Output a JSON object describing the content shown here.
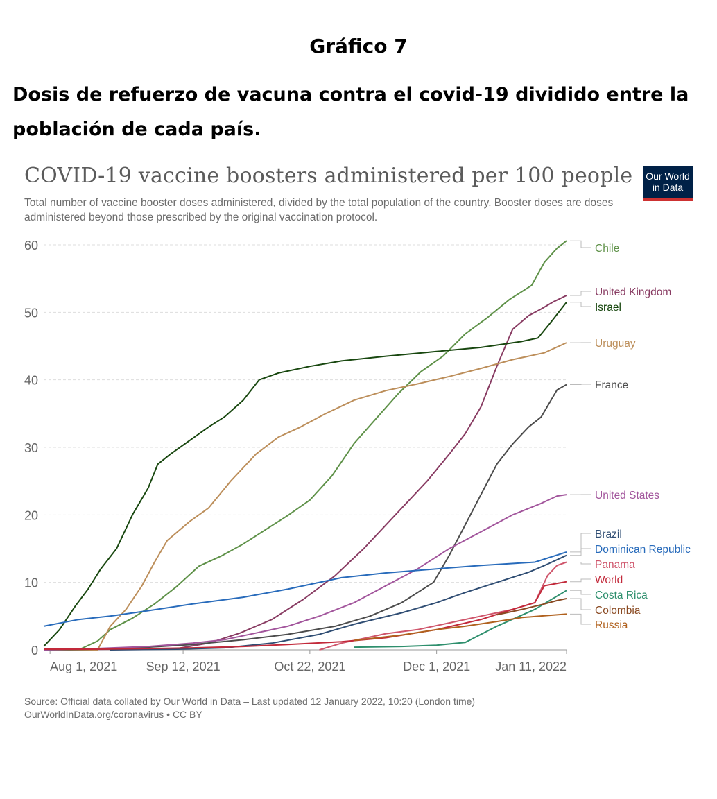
{
  "heading": "Gráfico 7",
  "doc_title": "Dosis de refuerzo de vacuna contra el covid-19 dividido entre la población de cada país.",
  "logo": "Our World in Data",
  "source_line1": "Source: Official data collated by Our World in Data – Last updated 12 January 2022, 10:20 (London time)",
  "source_line2": "OurWorldInData.org/coronavirus • CC BY",
  "chart_data": {
    "type": "line",
    "title": "COVID-19 vaccine boosters administered per 100 people",
    "subtitle": "Total number of vaccine booster doses administered, divided by the total population of the country. Booster doses are doses administered beyond those prescribed by the original vaccination protocol.",
    "x_ticks": [
      "Aug 1, 2021",
      "Sep 12, 2021",
      "Oct 22, 2021",
      "Dec 1, 2021",
      "Jan 11, 2022"
    ],
    "x_range": [
      "2021-07-30",
      "2022-01-11"
    ],
    "ylim": [
      0,
      60
    ],
    "y_ticks": [
      0,
      10,
      20,
      30,
      40,
      50,
      60
    ],
    "grid": "horizontal dashed",
    "legend": "line labels at right",
    "series": [
      {
        "name": "Chile",
        "color": "#5e9148",
        "points": [
          [
            "2021-08-10",
            0
          ],
          [
            "2021-08-16",
            1.3
          ],
          [
            "2021-08-20",
            3
          ],
          [
            "2021-08-27",
            4.7
          ],
          [
            "2021-09-03",
            6.8
          ],
          [
            "2021-09-10",
            9.4
          ],
          [
            "2021-09-17",
            12.4
          ],
          [
            "2021-09-24",
            13.9
          ],
          [
            "2021-10-01",
            15.7
          ],
          [
            "2021-10-08",
            17.8
          ],
          [
            "2021-10-15",
            19.9
          ],
          [
            "2021-10-22",
            22.2
          ],
          [
            "2021-10-29",
            25.8
          ],
          [
            "2021-11-05",
            30.6
          ],
          [
            "2021-11-12",
            34.3
          ],
          [
            "2021-11-19",
            38
          ],
          [
            "2021-11-26",
            41.2
          ],
          [
            "2021-12-03",
            43.5
          ],
          [
            "2021-12-10",
            46.8
          ],
          [
            "2021-12-17",
            49.2
          ],
          [
            "2021-12-24",
            51.9
          ],
          [
            "2021-12-31",
            54
          ],
          [
            "2022-01-04",
            57.4
          ],
          [
            "2022-01-08",
            59.5
          ],
          [
            "2022-01-11",
            60.6
          ]
        ]
      },
      {
        "name": "United Kingdom",
        "color": "#883b62",
        "points": [
          [
            "2021-07-30",
            0
          ],
          [
            "2021-09-10",
            0.2
          ],
          [
            "2021-09-20",
            1
          ],
          [
            "2021-09-30",
            2.5
          ],
          [
            "2021-10-10",
            4.5
          ],
          [
            "2021-10-20",
            7.5
          ],
          [
            "2021-10-30",
            11
          ],
          [
            "2021-11-08",
            15
          ],
          [
            "2021-11-18",
            20
          ],
          [
            "2021-11-28",
            25
          ],
          [
            "2021-12-05",
            29
          ],
          [
            "2021-12-10",
            32
          ],
          [
            "2021-12-15",
            36
          ],
          [
            "2021-12-20",
            42
          ],
          [
            "2021-12-25",
            47.5
          ],
          [
            "2021-12-30",
            49.5
          ],
          [
            "2022-01-03",
            50.5
          ],
          [
            "2022-01-07",
            51.6
          ],
          [
            "2022-01-11",
            52.5
          ]
        ]
      },
      {
        "name": "Israel",
        "color": "#18470f",
        "points": [
          [
            "2021-07-30",
            0.5
          ],
          [
            "2021-08-04",
            3
          ],
          [
            "2021-08-09",
            6.5
          ],
          [
            "2021-08-13",
            9
          ],
          [
            "2021-08-17",
            12
          ],
          [
            "2021-08-22",
            15
          ],
          [
            "2021-08-27",
            20
          ],
          [
            "2021-09-01",
            24
          ],
          [
            "2021-09-04",
            27.5
          ],
          [
            "2021-09-08",
            29
          ],
          [
            "2021-09-14",
            31
          ],
          [
            "2021-09-20",
            33
          ],
          [
            "2021-09-25",
            34.5
          ],
          [
            "2021-10-01",
            37
          ],
          [
            "2021-10-06",
            40
          ],
          [
            "2021-10-12",
            41
          ],
          [
            "2021-10-22",
            42
          ],
          [
            "2021-11-01",
            42.8
          ],
          [
            "2021-11-15",
            43.5
          ],
          [
            "2021-12-01",
            44.2
          ],
          [
            "2021-12-15",
            44.8
          ],
          [
            "2021-12-28",
            45.7
          ],
          [
            "2022-01-02",
            46.2
          ],
          [
            "2022-01-06",
            48.5
          ],
          [
            "2022-01-11",
            51.5
          ]
        ]
      },
      {
        "name": "Uruguay",
        "color": "#bc8e5a",
        "points": [
          [
            "2021-08-01",
            0
          ],
          [
            "2021-08-16",
            0
          ],
          [
            "2021-08-20",
            3.5
          ],
          [
            "2021-08-25",
            6
          ],
          [
            "2021-08-30",
            9.5
          ],
          [
            "2021-09-03",
            13
          ],
          [
            "2021-09-07",
            16.2
          ],
          [
            "2021-09-14",
            19
          ],
          [
            "2021-09-20",
            21
          ],
          [
            "2021-09-27",
            25
          ],
          [
            "2021-10-05",
            29
          ],
          [
            "2021-10-12",
            31.5
          ],
          [
            "2021-10-19",
            33
          ],
          [
            "2021-10-27",
            35
          ],
          [
            "2021-11-05",
            37
          ],
          [
            "2021-11-15",
            38.4
          ],
          [
            "2021-11-25",
            39.4
          ],
          [
            "2021-12-05",
            40.5
          ],
          [
            "2021-12-15",
            41.7
          ],
          [
            "2021-12-25",
            43
          ],
          [
            "2022-01-04",
            44
          ],
          [
            "2022-01-11",
            45.5
          ]
        ]
      },
      {
        "name": "France",
        "color": "#4c4c4c",
        "points": [
          [
            "2021-07-30",
            0
          ],
          [
            "2021-08-15",
            0.1
          ],
          [
            "2021-09-01",
            0.4
          ],
          [
            "2021-09-15",
            0.8
          ],
          [
            "2021-10-01",
            1.5
          ],
          [
            "2021-10-15",
            2.3
          ],
          [
            "2021-10-30",
            3.5
          ],
          [
            "2021-11-10",
            5
          ],
          [
            "2021-11-20",
            7
          ],
          [
            "2021-11-30",
            10
          ],
          [
            "2021-12-05",
            14
          ],
          [
            "2021-12-10",
            18.5
          ],
          [
            "2021-12-15",
            23
          ],
          [
            "2021-12-20",
            27.5
          ],
          [
            "2021-12-25",
            30.5
          ],
          [
            "2021-12-30",
            33
          ],
          [
            "2022-01-03",
            34.5
          ],
          [
            "2022-01-08",
            38.5
          ],
          [
            "2022-01-11",
            39.3
          ]
        ]
      },
      {
        "name": "United States",
        "color": "#a2559c",
        "points": [
          [
            "2021-07-30",
            0
          ],
          [
            "2021-08-15",
            0.2
          ],
          [
            "2021-09-01",
            0.5
          ],
          [
            "2021-09-15",
            1
          ],
          [
            "2021-09-25",
            1.5
          ],
          [
            "2021-10-05",
            2.5
          ],
          [
            "2021-10-15",
            3.5
          ],
          [
            "2021-10-25",
            5
          ],
          [
            "2021-11-05",
            7
          ],
          [
            "2021-11-15",
            9.5
          ],
          [
            "2021-11-25",
            12
          ],
          [
            "2021-12-05",
            15
          ],
          [
            "2021-12-15",
            17.5
          ],
          [
            "2021-12-25",
            20
          ],
          [
            "2022-01-03",
            21.7
          ],
          [
            "2022-01-08",
            22.8
          ],
          [
            "2022-01-11",
            23
          ]
        ]
      },
      {
        "name": "Brazil",
        "color": "#2f4d73",
        "points": [
          [
            "2021-08-20",
            0
          ],
          [
            "2021-09-10",
            0.1
          ],
          [
            "2021-09-25",
            0.3
          ],
          [
            "2021-10-10",
            1
          ],
          [
            "2021-10-25",
            2.3
          ],
          [
            "2021-11-05",
            3.8
          ],
          [
            "2021-11-20",
            5.5
          ],
          [
            "2021-12-01",
            7
          ],
          [
            "2021-12-10",
            8.5
          ],
          [
            "2021-12-20",
            10
          ],
          [
            "2021-12-30",
            11.5
          ],
          [
            "2022-01-05",
            12.7
          ],
          [
            "2022-01-11",
            14
          ]
        ]
      },
      {
        "name": "Dominican Republic",
        "color": "#286bbb",
        "points": [
          [
            "2021-07-30",
            3.5
          ],
          [
            "2021-08-10",
            4.5
          ],
          [
            "2021-08-20",
            5
          ],
          [
            "2021-09-01",
            5.8
          ],
          [
            "2021-09-15",
            6.8
          ],
          [
            "2021-10-01",
            7.8
          ],
          [
            "2021-10-15",
            9
          ],
          [
            "2021-11-01",
            10.7
          ],
          [
            "2021-11-15",
            11.4
          ],
          [
            "2021-12-01",
            12
          ],
          [
            "2021-12-15",
            12.5
          ],
          [
            "2022-01-01",
            13
          ],
          [
            "2022-01-11",
            14.5
          ]
        ]
      },
      {
        "name": "Panama",
        "color": "#cf556b",
        "points": [
          [
            "2021-10-25",
            0
          ],
          [
            "2021-11-01",
            1
          ],
          [
            "2021-11-15",
            2.4
          ],
          [
            "2021-11-25",
            3
          ],
          [
            "2021-12-05",
            4
          ],
          [
            "2021-12-15",
            5
          ],
          [
            "2021-12-25",
            6
          ],
          [
            "2022-01-01",
            7
          ],
          [
            "2022-01-05",
            11
          ],
          [
            "2022-01-08",
            12.5
          ],
          [
            "2022-01-11",
            13
          ]
        ]
      },
      {
        "name": "World",
        "color": "#c2293a",
        "points": [
          [
            "2021-07-30",
            0.1
          ],
          [
            "2021-08-15",
            0.1
          ],
          [
            "2021-09-01",
            0.2
          ],
          [
            "2021-09-15",
            0.3
          ],
          [
            "2021-10-01",
            0.5
          ],
          [
            "2021-10-15",
            0.8
          ],
          [
            "2021-11-01",
            1.2
          ],
          [
            "2021-11-15",
            1.8
          ],
          [
            "2021-12-01",
            3
          ],
          [
            "2021-12-15",
            4.5
          ],
          [
            "2021-12-25",
            6
          ],
          [
            "2022-01-01",
            7
          ],
          [
            "2022-01-04",
            9.5
          ],
          [
            "2022-01-11",
            10.1
          ]
        ]
      },
      {
        "name": "Costa Rica",
        "color": "#2e8f6d",
        "points": [
          [
            "2021-11-05",
            0.4
          ],
          [
            "2021-11-20",
            0.5
          ],
          [
            "2021-12-01",
            0.7
          ],
          [
            "2021-12-10",
            1.1
          ],
          [
            "2021-12-20",
            3.5
          ],
          [
            "2022-01-01",
            6
          ],
          [
            "2022-01-11",
            8.8
          ]
        ]
      },
      {
        "name": "Colombia",
        "color": "#8a4a22",
        "points": [
          [
            "2021-12-20",
            5.2
          ],
          [
            "2021-12-28",
            6
          ],
          [
            "2022-01-04",
            6.8
          ],
          [
            "2022-01-08",
            7.3
          ],
          [
            "2022-01-11",
            7.6
          ]
        ]
      },
      {
        "name": "Russia",
        "color": "#b0611e",
        "points": [
          [
            "2021-11-05",
            1.4
          ],
          [
            "2021-11-20",
            2.2
          ],
          [
            "2021-12-01",
            3
          ],
          [
            "2021-12-10",
            3.5
          ],
          [
            "2021-12-20",
            4.2
          ],
          [
            "2021-12-28",
            4.8
          ],
          [
            "2022-01-05",
            5.1
          ],
          [
            "2022-01-11",
            5.3
          ]
        ]
      }
    ]
  }
}
